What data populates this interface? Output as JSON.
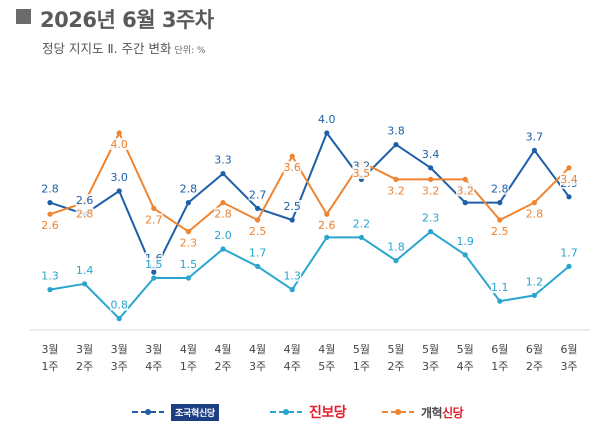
{
  "header": {
    "title": "2026년 6월 3주차",
    "subtitle": "정당 지지도 Ⅱ. 주간 변화",
    "unit": "단위: %"
  },
  "legend": {
    "cho": "조국혁신당",
    "jin": "진보당",
    "gae_a": "개혁",
    "gae_b": "신당"
  },
  "chart_data": {
    "type": "line",
    "categories": [
      [
        "3월",
        "1주"
      ],
      [
        "3월",
        "2주"
      ],
      [
        "3월",
        "3주"
      ],
      [
        "3월",
        "4주"
      ],
      [
        "4월",
        "1주"
      ],
      [
        "4월",
        "2주"
      ],
      [
        "4월",
        "3주"
      ],
      [
        "4월",
        "4주"
      ],
      [
        "4월",
        "5주"
      ],
      [
        "5월",
        "1주"
      ],
      [
        "5월",
        "2주"
      ],
      [
        "5월",
        "3주"
      ],
      [
        "5월",
        "4주"
      ],
      [
        "6월",
        "1주"
      ],
      [
        "6월",
        "2주"
      ],
      [
        "6월",
        "3주"
      ]
    ],
    "series": [
      {
        "name": "조국혁신당",
        "color": "#1e5fa8",
        "values": [
          2.8,
          2.6,
          3.0,
          1.6,
          2.8,
          3.3,
          2.7,
          2.5,
          4.0,
          3.2,
          3.8,
          3.4,
          2.8,
          2.8,
          3.7,
          2.9
        ]
      },
      {
        "name": "진보당",
        "color": "#29a5cf",
        "values": [
          1.3,
          1.4,
          0.8,
          1.5,
          1.5,
          2.0,
          1.7,
          1.3,
          2.2,
          2.2,
          1.8,
          2.3,
          1.9,
          1.1,
          1.2,
          1.7
        ]
      },
      {
        "name": "개혁신당",
        "color": "#ef8431",
        "values": [
          2.6,
          2.8,
          4.0,
          2.7,
          2.3,
          2.8,
          2.5,
          3.6,
          2.6,
          3.5,
          3.2,
          3.2,
          3.2,
          2.5,
          2.8,
          3.4
        ]
      }
    ],
    "xlabel": "",
    "ylabel": "",
    "grid": false,
    "legend_position": "bottom"
  }
}
